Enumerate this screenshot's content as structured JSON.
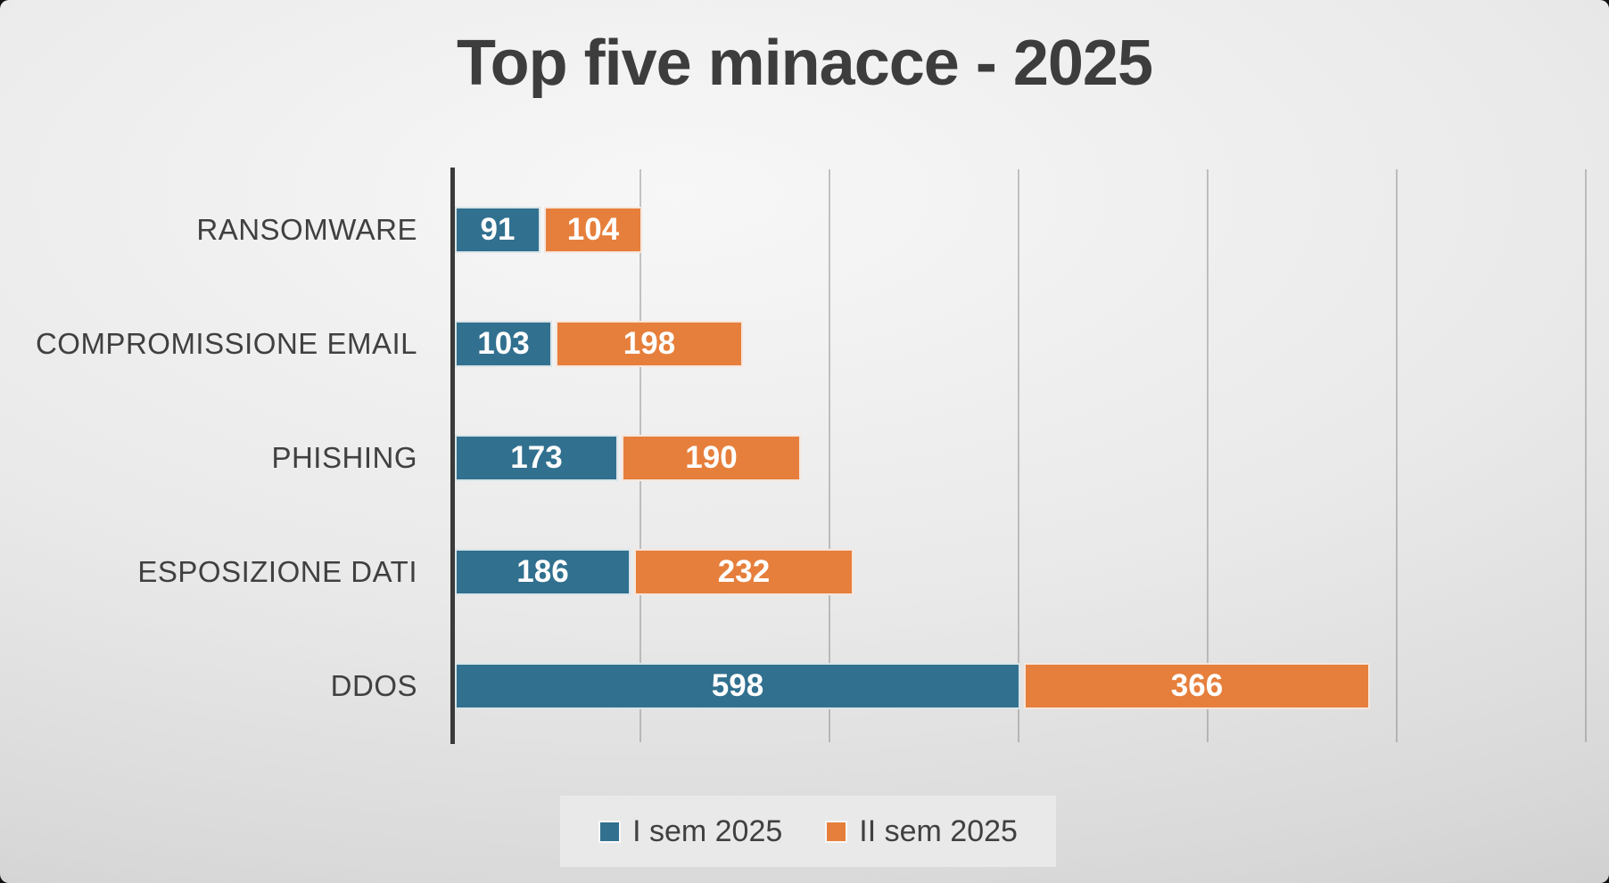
{
  "title": "Top five minacce - 2025",
  "chart_data": {
    "type": "bar",
    "orientation": "horizontal",
    "stacked": true,
    "title": "Top five minacce - 2025",
    "categories": [
      "RANSOMWARE",
      "COMPROMISSIONE EMAIL",
      "PHISHING",
      "ESPOSIZIONE DATI",
      "DDOS"
    ],
    "series": [
      {
        "name": "I sem 2025",
        "color": "#31708F",
        "values": [
          91,
          103,
          173,
          186,
          598
        ]
      },
      {
        "name": "II sem 2025",
        "color": "#E67F3C",
        "values": [
          104,
          198,
          190,
          232,
          366
        ]
      }
    ],
    "totals": [
      195,
      301,
      363,
      418,
      964
    ],
    "xlabel": "",
    "ylabel": "",
    "xlim": [
      0,
      1200
    ],
    "gridline_interval": 200,
    "grid": true,
    "data_labels": true,
    "legend_position": "bottom"
  },
  "colors": {
    "series1": "#31708F",
    "series2": "#E67F3C",
    "text": "#404040",
    "axis": "#3a3a3a",
    "gridline": "#828282",
    "legend_background": "#e9e9e9",
    "bar_value_text": "#ffffff"
  }
}
